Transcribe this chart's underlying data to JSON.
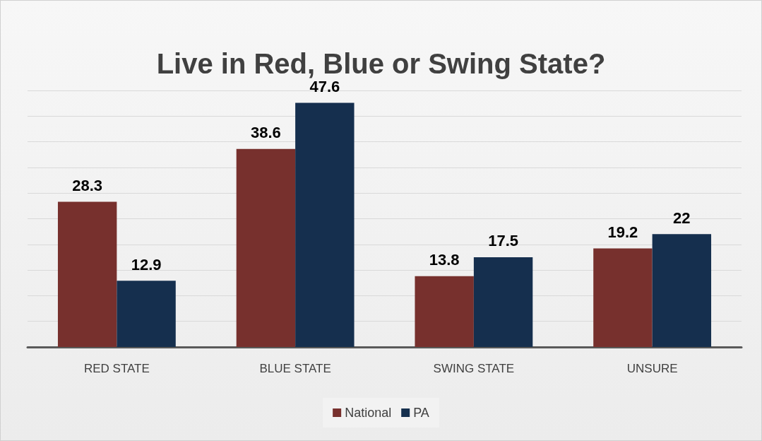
{
  "chart_data": {
    "type": "bar",
    "title": "Live in Red, Blue or Swing State?",
    "categories": [
      "RED STATE",
      "BLUE STATE",
      "SWING STATE",
      "UNSURE"
    ],
    "series": [
      {
        "name": "National",
        "color": "#77302d",
        "values": [
          28.3,
          38.6,
          13.8,
          19.2
        ]
      },
      {
        "name": "PA",
        "color": "#152f4e",
        "values": [
          12.9,
          47.6,
          17.5,
          22
        ]
      }
    ],
    "ylim": [
      0,
      50
    ],
    "yticks": [
      {
        "value": 0,
        "label": null
      },
      {
        "value": 5,
        "label": null
      },
      {
        "value": 10,
        "label": null
      },
      {
        "value": 15,
        "label": null
      },
      {
        "value": 20,
        "label": null
      },
      {
        "value": 25,
        "label": null
      },
      {
        "value": 30,
        "label": null
      },
      {
        "value": 35,
        "label": null
      },
      {
        "value": 40,
        "label": null
      },
      {
        "value": 45,
        "label": null
      },
      {
        "value": 50,
        "label": null
      }
    ],
    "tick_labels": "x",
    "grid": "y",
    "data_labels": true,
    "legend": "bottom"
  }
}
